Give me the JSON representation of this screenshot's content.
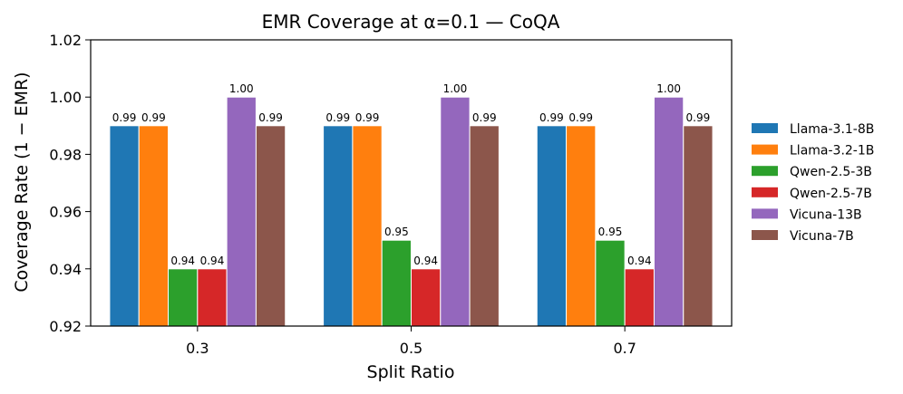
{
  "chart_data": {
    "type": "bar",
    "title": "EMR Coverage at α=0.1 — CoQA",
    "xlabel": "Split Ratio",
    "ylabel": "Coverage Rate (1 − EMR)",
    "ylim": [
      0.92,
      1.02
    ],
    "yticks": [
      "0.92",
      "0.94",
      "0.96",
      "0.98",
      "1.00",
      "1.02"
    ],
    "categories": [
      "0.3",
      "0.5",
      "0.7"
    ],
    "legend_position": "right",
    "series": [
      {
        "name": "Llama-3.1-8B",
        "color": "#1f77b4",
        "values": [
          0.99,
          0.99,
          0.99
        ],
        "labels": [
          "0.99",
          "0.99",
          "0.99"
        ]
      },
      {
        "name": "Llama-3.2-1B",
        "color": "#ff7f0e",
        "values": [
          0.99,
          0.99,
          0.99
        ],
        "labels": [
          "0.99",
          "0.99",
          "0.99"
        ]
      },
      {
        "name": "Qwen-2.5-3B",
        "color": "#2ca02c",
        "values": [
          0.94,
          0.95,
          0.95
        ],
        "labels": [
          "0.94",
          "0.95",
          "0.95"
        ]
      },
      {
        "name": "Qwen-2.5-7B",
        "color": "#d62728",
        "values": [
          0.94,
          0.94,
          0.94
        ],
        "labels": [
          "0.94",
          "0.94",
          "0.94"
        ]
      },
      {
        "name": "Vicuna-13B",
        "color": "#9467bd",
        "values": [
          1.0,
          1.0,
          1.0
        ],
        "labels": [
          "1.00",
          "1.00",
          "1.00"
        ]
      },
      {
        "name": "Vicuna-7B",
        "color": "#8c564b",
        "values": [
          0.99,
          0.99,
          0.99
        ],
        "labels": [
          "0.99",
          "0.99",
          "0.99"
        ]
      }
    ]
  }
}
